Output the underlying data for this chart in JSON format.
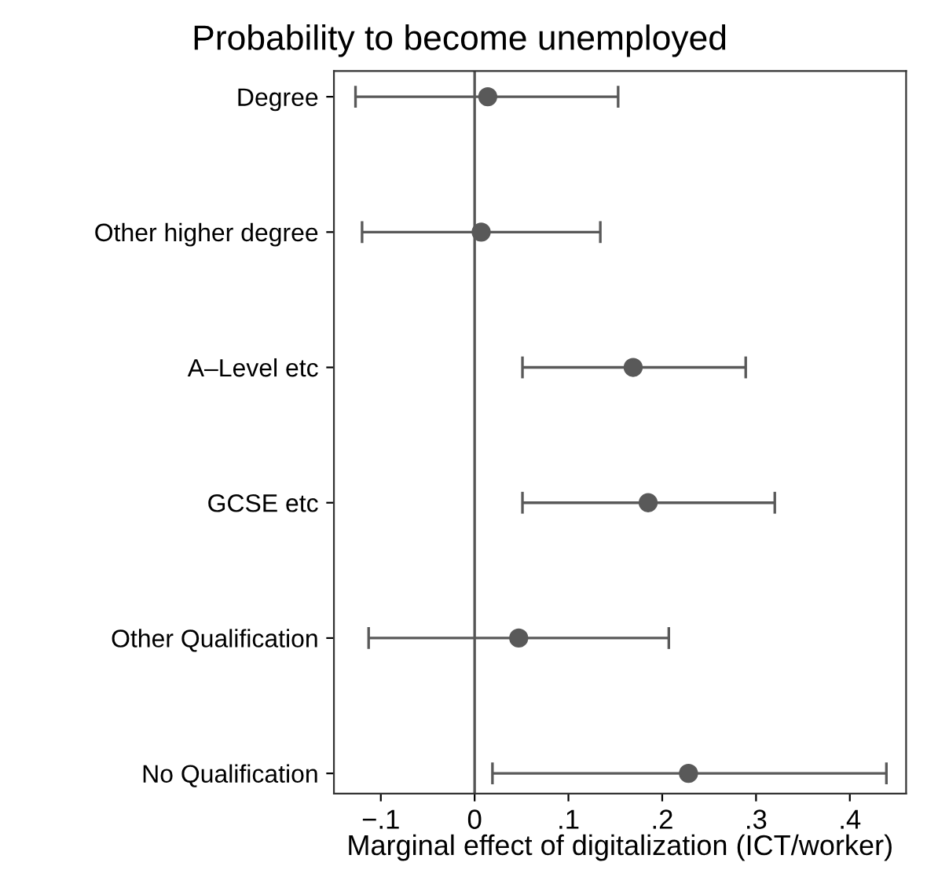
{
  "chart_data": {
    "type": "scatter",
    "orientation": "horizontal",
    "title": "Probability to become unemployed",
    "xlabel": "Marginal effect of digitalization (ICT/worker)",
    "categories": [
      "Degree",
      "Other higher degree",
      "A–Level etc",
      "GCSE etc",
      "Other Qualification",
      "No Qualification"
    ],
    "series": [
      {
        "color": "#595959",
        "values": [
          0.014,
          0.007,
          0.169,
          0.185,
          0.047,
          0.228
        ],
        "errors": [
          [
            -0.127,
            0.153
          ],
          [
            -0.12,
            0.134
          ],
          [
            0.051,
            0.289
          ],
          [
            0.051,
            0.32
          ],
          [
            -0.113,
            0.207
          ],
          [
            0.019,
            0.439
          ]
        ]
      }
    ],
    "xlim": [
      -0.15,
      0.46
    ],
    "xticks": [
      {
        "value": -0.1,
        "label": "−.1"
      },
      0,
      {
        "value": 0.1,
        "label": ".1"
      },
      {
        "value": 0.2,
        "label": ".2"
      },
      {
        "value": 0.3,
        "label": ".3"
      },
      {
        "value": 0.4,
        "label": ".4"
      }
    ],
    "ref_lines": [
      {
        "axis": "x",
        "value": 0,
        "color": "#555555"
      }
    ],
    "marker": "circle",
    "grid": false,
    "legend": false
  }
}
